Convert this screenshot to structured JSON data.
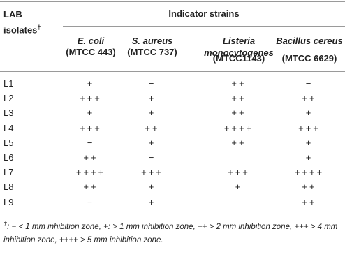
{
  "table": {
    "corner": {
      "text": "LAB isolates",
      "mark": "†"
    },
    "group_header": "Indicator strains",
    "columns": [
      {
        "name": "E. coli",
        "code": "(MTCC 443)"
      },
      {
        "name": "S. aureus",
        "code": "(MTCC 737)"
      },
      {
        "name": "Listeria monocytogenes",
        "code": "(MTCC1143)"
      },
      {
        "name": "Bacillus cereus",
        "code": "(MTCC 6629)"
      }
    ],
    "rows": [
      {
        "label": "L1",
        "cells": [
          "+",
          "−",
          "++",
          "−"
        ]
      },
      {
        "label": "L2",
        "cells": [
          "+++",
          "+",
          "++",
          "++"
        ]
      },
      {
        "label": "L3",
        "cells": [
          "+",
          "+",
          "++",
          "+"
        ]
      },
      {
        "label": "L4",
        "cells": [
          "+++",
          "++",
          "++++",
          "+++"
        ]
      },
      {
        "label": "L5",
        "cells": [
          "−",
          "+",
          "++",
          "+"
        ]
      },
      {
        "label": "L6",
        "cells": [
          "++",
          "−",
          null,
          "+"
        ]
      },
      {
        "label": "L7",
        "cells": [
          "++++",
          "+++",
          "+++",
          "++++"
        ]
      },
      {
        "label": "L8",
        "cells": [
          "++",
          "+",
          "+",
          "++"
        ]
      },
      {
        "label": "L9",
        "cells": [
          "−",
          "+",
          null,
          "++"
        ]
      }
    ],
    "footnote": {
      "mark": "†",
      "text": ": − < 1 mm inhibition zone, +: > 1 mm inhibition zone, ++ > 2 mm inhibition zone, +++ > 4 mm inhibition zone, ++++ > 5 mm inhibition zone."
    }
  }
}
